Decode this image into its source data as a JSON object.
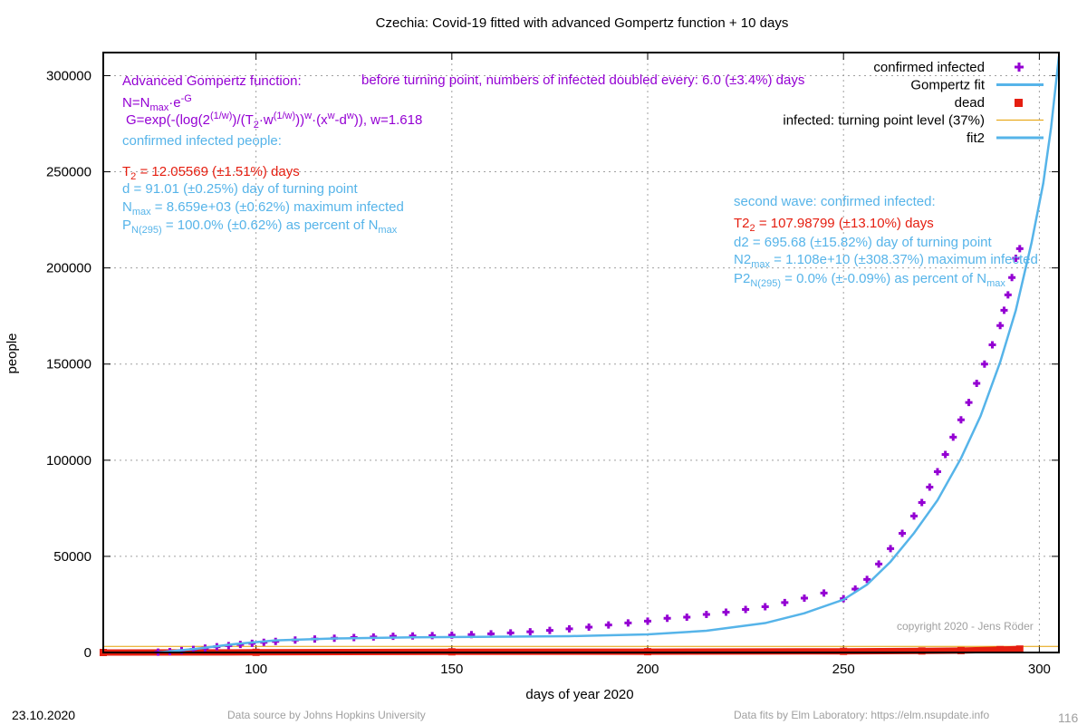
{
  "chart_data": {
    "type": "scatter",
    "title": "Czechia: Covid-19 fitted with advanced Gompertz function + 10 days",
    "xlabel": "days of year 2020",
    "ylabel": "people",
    "xlim": [
      61,
      305
    ],
    "ylim": [
      0,
      312000
    ],
    "x_ticks": [
      100,
      150,
      200,
      250,
      300
    ],
    "y_ticks": [
      0,
      50000,
      100000,
      150000,
      200000,
      250000,
      300000
    ],
    "grid": "dashed",
    "legend_position": "top-right",
    "legend": [
      {
        "label": "confirmed infected",
        "color": "#9400d3",
        "marker": "plus"
      },
      {
        "label": "Gompertz fit",
        "color": "#56b4e9",
        "marker": "line"
      },
      {
        "label": "dead",
        "color": "#e51e10",
        "marker": "square"
      },
      {
        "label": "infected: turning point level (37%)",
        "color": "#e69f00",
        "marker": "thin-line"
      },
      {
        "label": "fit2",
        "color": "#56b4e9",
        "marker": "line"
      }
    ],
    "series": [
      {
        "name": "confirmed infected",
        "color": "#9400d3",
        "x": [
          75,
          78,
          81,
          84,
          87,
          90,
          93,
          96,
          99,
          102,
          105,
          110,
          115,
          120,
          125,
          130,
          135,
          140,
          145,
          150,
          155,
          160,
          165,
          170,
          175,
          180,
          185,
          190,
          195,
          200,
          205,
          210,
          215,
          220,
          225,
          230,
          235,
          240,
          245,
          250,
          253,
          256,
          259,
          262,
          265,
          268,
          270,
          272,
          274,
          276,
          278,
          280,
          282,
          284,
          286,
          288,
          290,
          291,
          292,
          293,
          294,
          295
        ],
        "y": [
          200,
          500,
          1000,
          1600,
          2300,
          3000,
          3600,
          4200,
          4800,
          5300,
          5800,
          6500,
          7000,
          7400,
          7800,
          8100,
          8400,
          8600,
          8800,
          9000,
          9300,
          9700,
          10200,
          10800,
          11500,
          12300,
          13200,
          14300,
          15400,
          16300,
          17800,
          18400,
          19800,
          21000,
          22400,
          23800,
          26000,
          28300,
          30900,
          28000,
          33000,
          38000,
          46000,
          54000,
          62000,
          71000,
          78000,
          86000,
          94000,
          103000,
          112000,
          121000,
          130000,
          140000,
          150000,
          160000,
          170000,
          178000,
          186000,
          195000,
          205000,
          210000
        ]
      },
      {
        "name": "Gompertz fit",
        "color": "#56b4e9",
        "x": [
          75,
          85,
          95,
          105,
          120,
          140,
          160,
          180,
          200,
          215,
          230,
          240,
          250,
          256,
          262,
          268,
          274,
          280,
          285,
          290,
          294,
          298,
          301,
          303,
          305
        ],
        "y": [
          0,
          2000,
          4500,
          6300,
          7300,
          7900,
          8200,
          8500,
          9400,
          11300,
          15300,
          20400,
          27500,
          35300,
          47200,
          62100,
          79200,
          101000,
          123000,
          151000,
          178000,
          213000,
          244000,
          273000,
          310000
        ]
      },
      {
        "name": "dead",
        "color": "#e51e10",
        "x": [
          61,
          100,
          150,
          200,
          250,
          270,
          280,
          290,
          295
        ],
        "y": [
          0,
          100,
          350,
          420,
          600,
          800,
          1000,
          1500,
          1800
        ]
      },
      {
        "name": "infected: turning point level (37%)",
        "color": "#e69f00",
        "x": [
          61,
          305
        ],
        "y": [
          3200,
          3200
        ]
      }
    ]
  },
  "annotations": {
    "adv_title": "Advanced Gompertz function:",
    "formula1_a": "N=N",
    "formula1_sub": "max",
    "formula1_b": "·e",
    "formula1_sup": "-G",
    "formula2_a": "G=exp(-(log(2",
    "formula2_sup1": "(1/w)",
    "formula2_b": ")/(T",
    "formula2_sub1": "2",
    "formula2_c": "·w",
    "formula2_sup2": "(1/w)",
    "formula2_d": "))",
    "formula2_sup3": "w",
    "formula2_e": "·(x",
    "formula2_sup4": "w",
    "formula2_f": "-d",
    "formula2_sup5": "w",
    "formula2_g": ")), w=1.618",
    "doubling": "before turning point, numbers of infected doubled every: 6.0 (±3.4%) days",
    "confirmed_title": "confirmed infected people:",
    "t2_a": "T",
    "t2_sub": "2",
    "t2_b": "= 12.05569 (±1.51%) days",
    "d_line": "d = 91.01 (±0.25%) day of turning point",
    "nmax_a": "N",
    "nmax_sub": "max",
    "nmax_b": "= 8.659e+03 (±0.62%) maximum infected",
    "p_a": "P",
    "p_sub": "N(295)",
    "p_b": "= 100.0% (±0.62%) as percent of N",
    "p_sub2": "max",
    "second_title": "second wave: confirmed infected:",
    "t22_a": "T2",
    "t22_sub": "2",
    "t22_b": "= 107.98799 (±13.10%) days",
    "d2_line": "d2 = 695.68 (±15.82%) day of turning point",
    "n2_a": "N2",
    "n2_sub": "max",
    "n2_b": "= 1.108e+10 (±308.37%) maximum infected",
    "p2_a": "P2",
    "p2_sub": "N(295)",
    "p2_b": "= 0.0% (±-0.09%) as percent of N",
    "p2_sub2": "max",
    "copyright": "copyright 2020 - Jens Röder"
  },
  "footer": {
    "date": "23.10.2020",
    "source": "Data source by Johns Hopkins University",
    "fits": "Data fits by Elm Laboratory: https://elm.nsupdate.info",
    "page_number": "116"
  }
}
